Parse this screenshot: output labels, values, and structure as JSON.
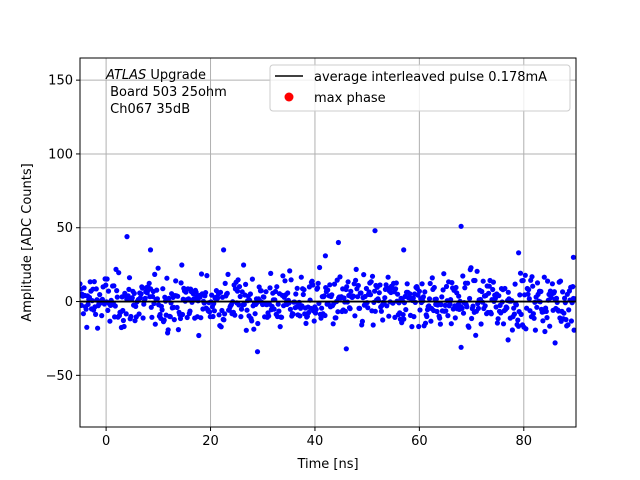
{
  "chart_data": {
    "type": "scatter",
    "xlabel": "Time [ns]",
    "ylabel": "Amplitude [ADC Counts]",
    "xlim": [
      -5,
      90
    ],
    "ylim": [
      -85,
      165
    ],
    "xticks": [
      0,
      20,
      40,
      60,
      80
    ],
    "yticks": [
      -50,
      0,
      50,
      100,
      150
    ],
    "grid": true,
    "annotation": {
      "line1_italic": "ATLAS",
      "line1_rest": " Upgrade",
      "line2": " Board 503 25ohm",
      "line3": " Ch067 35dB"
    },
    "legend": {
      "placement": "top-right",
      "entries": [
        {
          "label": "average interleaved pulse 0.178mA",
          "kind": "line",
          "color": "#000000"
        },
        {
          "label": "max phase",
          "kind": "marker",
          "color": "#ff0000"
        }
      ]
    },
    "series": [
      {
        "kind": "line",
        "color": "#000000",
        "x": [
          -5,
          90
        ],
        "y": [
          0,
          0
        ]
      },
      {
        "kind": "scatter",
        "color": "#0000ff",
        "x_start": -5,
        "x_step": 0.13,
        "count": 730,
        "spread_sd": 9,
        "notable_points": [
          {
            "x": 4,
            "y": 44
          },
          {
            "x": 8.5,
            "y": 35
          },
          {
            "x": 22.5,
            "y": 35
          },
          {
            "x": 29,
            "y": -34
          },
          {
            "x": 42,
            "y": 31
          },
          {
            "x": 44.5,
            "y": 40
          },
          {
            "x": 46,
            "y": -32
          },
          {
            "x": 51.5,
            "y": 48
          },
          {
            "x": 57,
            "y": 35
          },
          {
            "x": 68,
            "y": 51
          },
          {
            "x": 68,
            "y": -31
          },
          {
            "x": 79,
            "y": 33
          },
          {
            "x": 77,
            "y": -26
          },
          {
            "x": 86,
            "y": -28
          },
          {
            "x": 89.5,
            "y": 30
          }
        ]
      }
    ]
  }
}
